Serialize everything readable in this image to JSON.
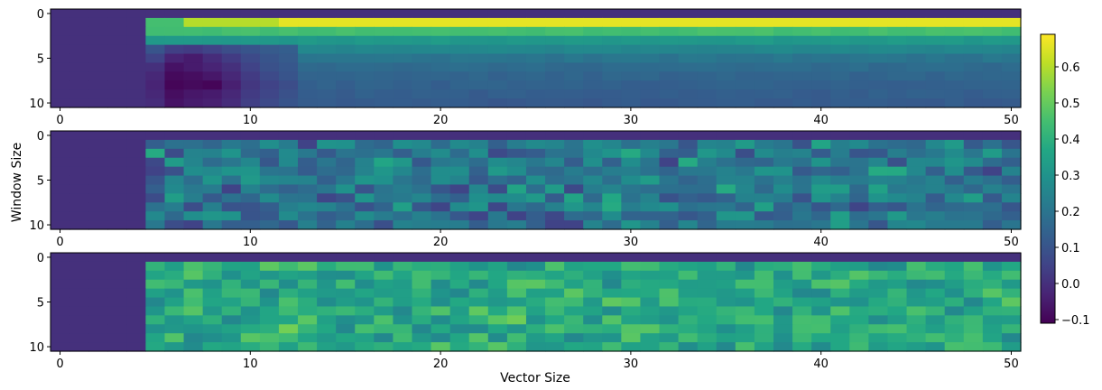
{
  "figure": {
    "xlabel": "Vector Size",
    "ylabel": "Window Size"
  },
  "chart_data": {
    "type": "heatmap",
    "colormap": "viridis",
    "shared_colorbar": true,
    "colorbar": {
      "range": [
        -0.11,
        0.69
      ],
      "ticks": [
        -0.1,
        0.0,
        0.1,
        0.2,
        0.3,
        0.4,
        0.5,
        0.6
      ],
      "tick_labels": [
        "−0.1",
        "0.0",
        "0.1",
        "0.2",
        "0.3",
        "0.4",
        "0.5",
        "0.6"
      ]
    },
    "x_range": [
      0,
      50
    ],
    "y_range": [
      0,
      10
    ],
    "x_ticks": [
      0,
      10,
      20,
      30,
      40,
      50
    ],
    "y_ticks": [
      0,
      5,
      10
    ],
    "grid": false,
    "panels": [
      {
        "id": "top",
        "xlabel": "",
        "ylabel": "",
        "empty_columns_value": 0.0,
        "first_row_value": 0.0,
        "row_values": [
          0.0,
          0.66,
          0.45,
          0.32,
          0.26,
          0.2,
          0.17,
          0.15,
          0.14,
          0.13,
          0.12
        ],
        "low_region": {
          "x_start": 5,
          "x_end": 12,
          "y_start": 4,
          "values": [
            [
              0.1,
              0.04,
              0.03,
              0.05,
              0.08,
              0.1,
              0.12,
              0.13
            ],
            [
              0.05,
              -0.03,
              -0.05,
              -0.01,
              0.03,
              0.07,
              0.1,
              0.12
            ],
            [
              0.0,
              -0.07,
              -0.05,
              -0.03,
              0.0,
              0.05,
              0.09,
              0.11
            ],
            [
              -0.02,
              -0.09,
              -0.08,
              -0.06,
              -0.02,
              0.03,
              0.07,
              0.1
            ],
            [
              -0.03,
              -0.1,
              -0.09,
              -0.1,
              -0.04,
              0.02,
              0.05,
              0.08
            ],
            [
              -0.02,
              -0.08,
              -0.06,
              -0.05,
              -0.02,
              0.03,
              0.06,
              0.09
            ],
            [
              -0.01,
              -0.07,
              -0.05,
              -0.04,
              -0.01,
              0.04,
              0.07,
              0.1
            ]
          ]
        },
        "row1_values": {
          "5-6": 0.45,
          "7-11": 0.6,
          "12-50": 0.66
        }
      },
      {
        "id": "middle",
        "xlabel": "",
        "ylabel": "Window Size",
        "empty_columns_value": 0.0,
        "first_row_value": 0.0,
        "value_range": [
          0.05,
          0.38
        ],
        "mean_value": 0.2
      },
      {
        "id": "bottom",
        "xlabel": "Vector Size",
        "ylabel": "",
        "empty_columns_value": 0.0,
        "first_row_value": 0.0,
        "value_range": [
          0.26,
          0.52
        ],
        "mean_value": 0.37
      }
    ]
  }
}
